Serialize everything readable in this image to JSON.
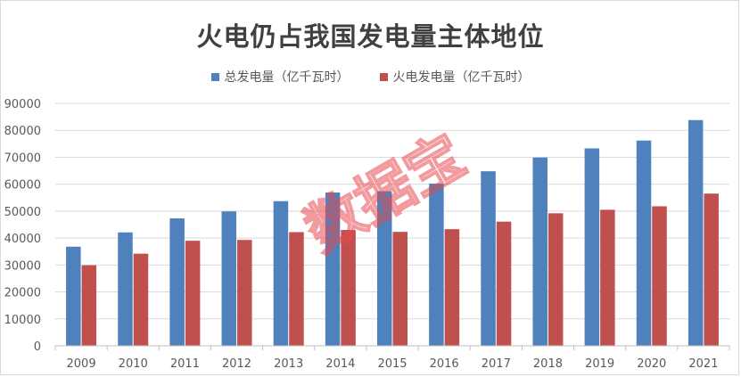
{
  "chart_data": {
    "type": "bar",
    "title": "火电仍占我国发电量主体地位",
    "categories": [
      "2009",
      "2010",
      "2011",
      "2012",
      "2013",
      "2014",
      "2015",
      "2016",
      "2017",
      "2018",
      "2019",
      "2020",
      "2021"
    ],
    "series": [
      {
        "name": "总发电量（亿千瓦时）",
        "color": "#4f81bd",
        "values": [
          36800,
          42100,
          47300,
          49900,
          53700,
          56900,
          57400,
          60200,
          64800,
          69900,
          73300,
          76200,
          83800
        ]
      },
      {
        "name": "火电发电量（亿千瓦时）",
        "color": "#c0504d",
        "values": [
          29900,
          34200,
          39000,
          39300,
          42200,
          43000,
          42300,
          43300,
          46100,
          49200,
          50500,
          51800,
          56500
        ]
      }
    ],
    "yticks": [
      "0",
      "10000",
      "20000",
      "30000",
      "40000",
      "50000",
      "60000",
      "70000",
      "80000",
      "90000"
    ],
    "ylim": [
      0,
      90000
    ],
    "grid": true,
    "legend_position": "top"
  },
  "watermark": {
    "text": "数据宝",
    "color": "#e8474d"
  }
}
